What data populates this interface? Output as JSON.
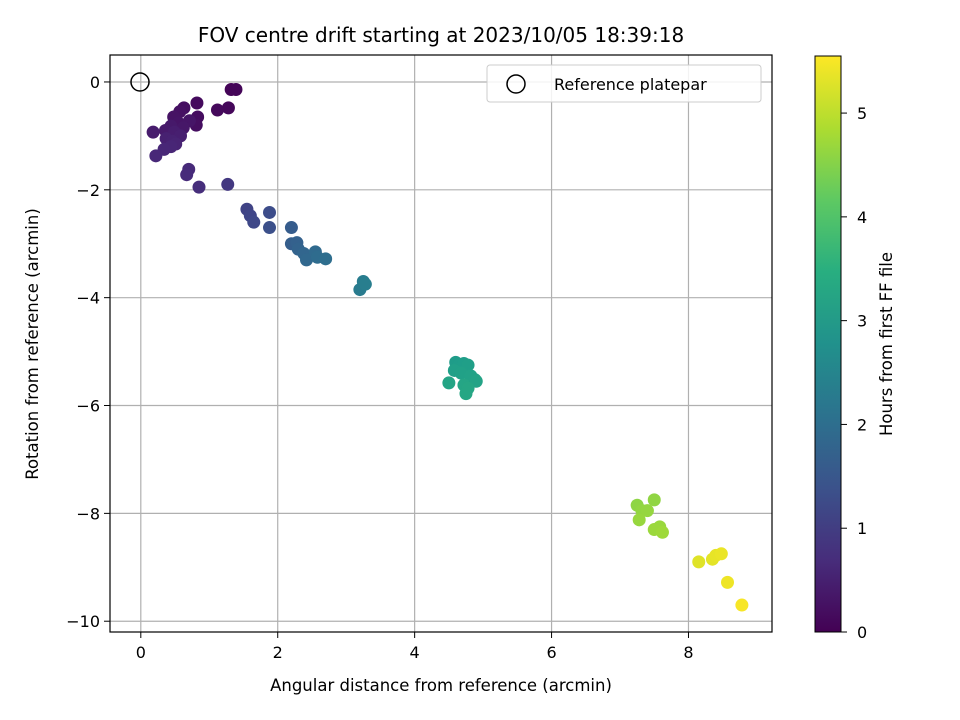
{
  "chart_data": {
    "type": "scatter",
    "title": "FOV centre drift starting at 2023/10/05 18:39:18",
    "xlabel": "Angular distance from reference (arcmin)",
    "ylabel": "Rotation from reference (arcmin)",
    "xlim": [
      -0.45,
      9.22
    ],
    "ylim": [
      -10.2,
      0.5
    ],
    "xticks": [
      0,
      2,
      4,
      6,
      8
    ],
    "yticks": [
      0,
      -2,
      -4,
      -6,
      -8,
      -10
    ],
    "grid": true,
    "legend": {
      "position": "top-right",
      "entries": [
        "Reference platepar"
      ]
    },
    "colorbar": {
      "label": "Hours from first FF file",
      "min": 0,
      "max": 5.55,
      "ticks": [
        0,
        1,
        2,
        3,
        4,
        5
      ],
      "colormap": "viridis"
    },
    "reference_point": {
      "x": 0,
      "y": 0
    },
    "points": [
      {
        "x": 1.32,
        "y": -0.14,
        "c": 0.05
      },
      {
        "x": 1.39,
        "y": -0.14,
        "c": 0.07
      },
      {
        "x": 1.28,
        "y": -0.48,
        "c": 0.1
      },
      {
        "x": 1.12,
        "y": -0.52,
        "c": 0.12
      },
      {
        "x": 0.82,
        "y": -0.39,
        "c": 0.15
      },
      {
        "x": 0.83,
        "y": -0.65,
        "c": 0.18
      },
      {
        "x": 0.81,
        "y": -0.8,
        "c": 0.2
      },
      {
        "x": 0.63,
        "y": -0.48,
        "c": 0.22
      },
      {
        "x": 0.57,
        "y": -0.55,
        "c": 0.25
      },
      {
        "x": 0.48,
        "y": -0.65,
        "c": 0.28
      },
      {
        "x": 0.55,
        "y": -0.76,
        "c": 0.3
      },
      {
        "x": 0.71,
        "y": -0.72,
        "c": 0.32
      },
      {
        "x": 0.62,
        "y": -0.85,
        "c": 0.35
      },
      {
        "x": 0.44,
        "y": -0.82,
        "c": 0.38
      },
      {
        "x": 0.36,
        "y": -0.9,
        "c": 0.4
      },
      {
        "x": 0.18,
        "y": -0.93,
        "c": 0.42
      },
      {
        "x": 0.49,
        "y": -0.93,
        "c": 0.45
      },
      {
        "x": 0.58,
        "y": -1.0,
        "c": 0.48
      },
      {
        "x": 0.37,
        "y": -1.05,
        "c": 0.5
      },
      {
        "x": 0.46,
        "y": -1.1,
        "c": 0.52
      },
      {
        "x": 0.51,
        "y": -1.15,
        "c": 0.55
      },
      {
        "x": 0.44,
        "y": -1.2,
        "c": 0.58
      },
      {
        "x": 0.34,
        "y": -1.25,
        "c": 0.6
      },
      {
        "x": 0.22,
        "y": -1.37,
        "c": 0.62
      },
      {
        "x": 0.7,
        "y": -1.62,
        "c": 0.65
      },
      {
        "x": 0.67,
        "y": -1.72,
        "c": 0.68
      },
      {
        "x": 0.85,
        "y": -1.95,
        "c": 0.72
      },
      {
        "x": 1.27,
        "y": -1.9,
        "c": 0.9
      },
      {
        "x": 1.55,
        "y": -2.36,
        "c": 1.1
      },
      {
        "x": 1.6,
        "y": -2.48,
        "c": 1.15
      },
      {
        "x": 1.65,
        "y": -2.6,
        "c": 1.2
      },
      {
        "x": 1.88,
        "y": -2.42,
        "c": 1.3
      },
      {
        "x": 1.88,
        "y": -2.7,
        "c": 1.35
      },
      {
        "x": 2.2,
        "y": -2.7,
        "c": 1.6
      },
      {
        "x": 2.2,
        "y": -3.0,
        "c": 1.65
      },
      {
        "x": 2.28,
        "y": -2.98,
        "c": 1.7
      },
      {
        "x": 2.3,
        "y": -3.1,
        "c": 1.75
      },
      {
        "x": 2.38,
        "y": -3.18,
        "c": 1.8
      },
      {
        "x": 2.42,
        "y": -3.3,
        "c": 1.85
      },
      {
        "x": 2.55,
        "y": -3.15,
        "c": 1.9
      },
      {
        "x": 2.58,
        "y": -3.25,
        "c": 1.95
      },
      {
        "x": 2.7,
        "y": -3.28,
        "c": 2.0
      },
      {
        "x": 3.2,
        "y": -3.85,
        "c": 2.3
      },
      {
        "x": 3.25,
        "y": -3.7,
        "c": 2.33
      },
      {
        "x": 3.28,
        "y": -3.75,
        "c": 2.36
      },
      {
        "x": 4.6,
        "y": -5.2,
        "c": 3.05
      },
      {
        "x": 4.65,
        "y": -5.25,
        "c": 3.07
      },
      {
        "x": 4.72,
        "y": -5.22,
        "c": 3.09
      },
      {
        "x": 4.78,
        "y": -5.25,
        "c": 3.11
      },
      {
        "x": 4.58,
        "y": -5.35,
        "c": 3.13
      },
      {
        "x": 4.68,
        "y": -5.4,
        "c": 3.15
      },
      {
        "x": 4.82,
        "y": -5.45,
        "c": 3.17
      },
      {
        "x": 4.88,
        "y": -5.52,
        "c": 3.19
      },
      {
        "x": 4.9,
        "y": -5.55,
        "c": 3.21
      },
      {
        "x": 4.5,
        "y": -5.58,
        "c": 3.23
      },
      {
        "x": 4.72,
        "y": -5.62,
        "c": 3.25
      },
      {
        "x": 4.78,
        "y": -5.68,
        "c": 3.27
      },
      {
        "x": 4.75,
        "y": -5.78,
        "c": 3.29
      },
      {
        "x": 7.25,
        "y": -7.85,
        "c": 4.6
      },
      {
        "x": 7.5,
        "y": -7.75,
        "c": 4.62
      },
      {
        "x": 7.32,
        "y": -7.95,
        "c": 4.64
      },
      {
        "x": 7.4,
        "y": -7.95,
        "c": 4.66
      },
      {
        "x": 7.28,
        "y": -8.12,
        "c": 4.68
      },
      {
        "x": 7.58,
        "y": -8.25,
        "c": 4.7
      },
      {
        "x": 7.5,
        "y": -8.3,
        "c": 4.72
      },
      {
        "x": 7.62,
        "y": -8.35,
        "c": 4.74
      },
      {
        "x": 8.15,
        "y": -8.9,
        "c": 5.3
      },
      {
        "x": 8.35,
        "y": -8.85,
        "c": 5.33
      },
      {
        "x": 8.4,
        "y": -8.78,
        "c": 5.36
      },
      {
        "x": 8.48,
        "y": -8.75,
        "c": 5.39
      },
      {
        "x": 8.57,
        "y": -9.28,
        "c": 5.42
      },
      {
        "x": 8.78,
        "y": -9.7,
        "c": 5.5
      }
    ]
  }
}
